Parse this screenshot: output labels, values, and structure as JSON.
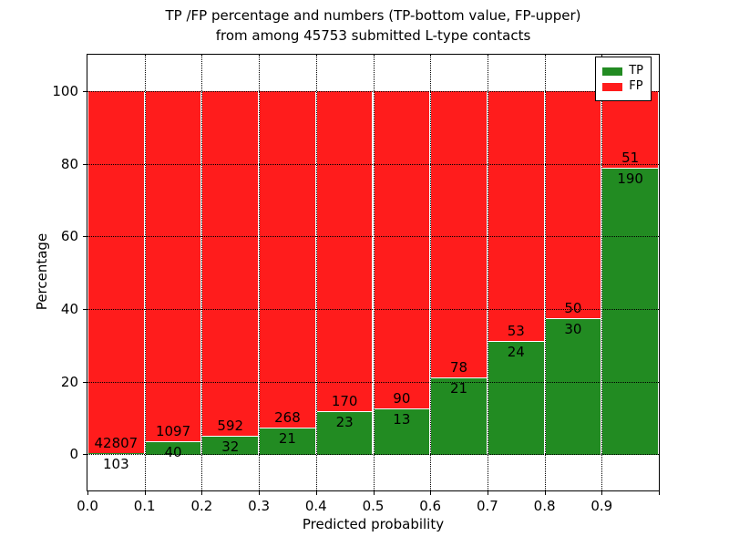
{
  "title": {
    "line1": "TP /FP percentage and numbers (TP-bottom value, FP-upper)",
    "line2": "from among 45753 submitted L-type contacts"
  },
  "chart_data": {
    "type": "bar",
    "stacked": true,
    "title": "TP /FP percentage and numbers (TP-bottom value, FP-upper) from among 45753 submitted L-type contacts",
    "xlabel": "Predicted probability",
    "ylabel": "Percentage",
    "xlim": [
      0.0,
      1.0
    ],
    "ylim": [
      -10,
      110
    ],
    "bin_width": 0.1,
    "categories": [
      "0.0-0.1",
      "0.1-0.2",
      "0.2-0.3",
      "0.3-0.4",
      "0.4-0.5",
      "0.5-0.6",
      "0.6-0.7",
      "0.7-0.8",
      "0.8-0.9",
      "0.9-1.0"
    ],
    "xtick_labels": [
      "0.0",
      "0.1",
      "0.2",
      "0.3",
      "0.4",
      "0.5",
      "0.6",
      "0.7",
      "0.8",
      "0.9"
    ],
    "ytick_values": [
      0,
      20,
      40,
      60,
      80,
      100
    ],
    "grid": "dotted black, vertical at each 0.1 and horizontal at each 20, drawn above bars",
    "total_contacts": 45753,
    "series": [
      {
        "name": "TP",
        "color": "#228b22",
        "counts": [
          103,
          40,
          32,
          21,
          23,
          13,
          21,
          24,
          30,
          190
        ],
        "pct": [
          0.24,
          3.52,
          5.13,
          7.27,
          11.92,
          12.62,
          21.21,
          31.17,
          37.5,
          78.84
        ]
      },
      {
        "name": "FP",
        "color": "#ff1c1c",
        "counts": [
          42807,
          1097,
          592,
          268,
          170,
          90,
          78,
          53,
          50,
          51
        ],
        "pct": [
          99.76,
          96.48,
          94.87,
          92.73,
          88.08,
          87.38,
          78.79,
          68.83,
          62.5,
          21.16
        ]
      }
    ],
    "legend": {
      "position": "upper right",
      "entries": [
        {
          "label": "TP",
          "color": "#228b22"
        },
        {
          "label": "FP",
          "color": "#ff1c1c"
        }
      ]
    }
  }
}
